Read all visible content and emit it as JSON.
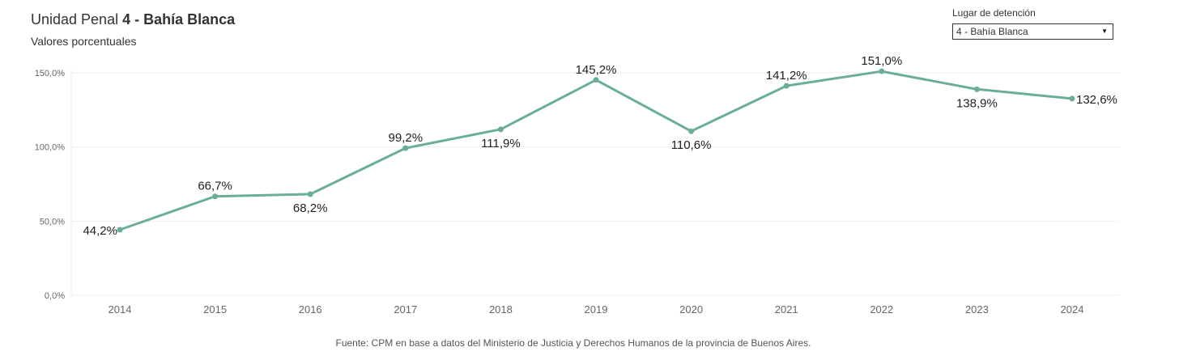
{
  "header": {
    "title_plain": "Unidad Penal ",
    "title_bold": "4 - Bahía Blanca",
    "subtitle": "Valores porcentuales"
  },
  "filter": {
    "label": "Lugar de detención",
    "selected": "4 - Bahía Blanca",
    "icon": "dropdown-arrow-icon"
  },
  "source": "Fuente: CPM en base a datos del Ministerio de Justicia y Derechos Humanos de la provincia de Buenos Aires.",
  "colors": {
    "line": "#6aae93",
    "grid": "#eeeeee",
    "axis_text": "#666666",
    "label_text": "#222222"
  },
  "chart_data": {
    "type": "line",
    "title": "Unidad Penal 4 - Bahía Blanca",
    "subtitle": "Valores porcentuales",
    "categories": [
      "2014",
      "2015",
      "2016",
      "2017",
      "2018",
      "2019",
      "2020",
      "2021",
      "2022",
      "2023",
      "2024"
    ],
    "values": [
      44.2,
      66.7,
      68.2,
      99.2,
      111.9,
      145.2,
      110.6,
      141.2,
      151.0,
      138.9,
      132.6
    ],
    "data_labels": [
      "44,2%",
      "66,7%",
      "68,2%",
      "99,2%",
      "111,9%",
      "145,2%",
      "110,6%",
      "141,2%",
      "151,0%",
      "138,9%",
      "132,6%"
    ],
    "label_positions": [
      "left",
      "above",
      "below",
      "above",
      "below",
      "above",
      "below",
      "above",
      "above",
      "below",
      "right"
    ],
    "y_ticks": [
      0,
      50,
      100,
      150
    ],
    "y_tick_labels": [
      "0,0%",
      "50,0%",
      "100,0%",
      "150,0%"
    ],
    "ylim": [
      0,
      150
    ],
    "grid": true,
    "legend": "none"
  }
}
